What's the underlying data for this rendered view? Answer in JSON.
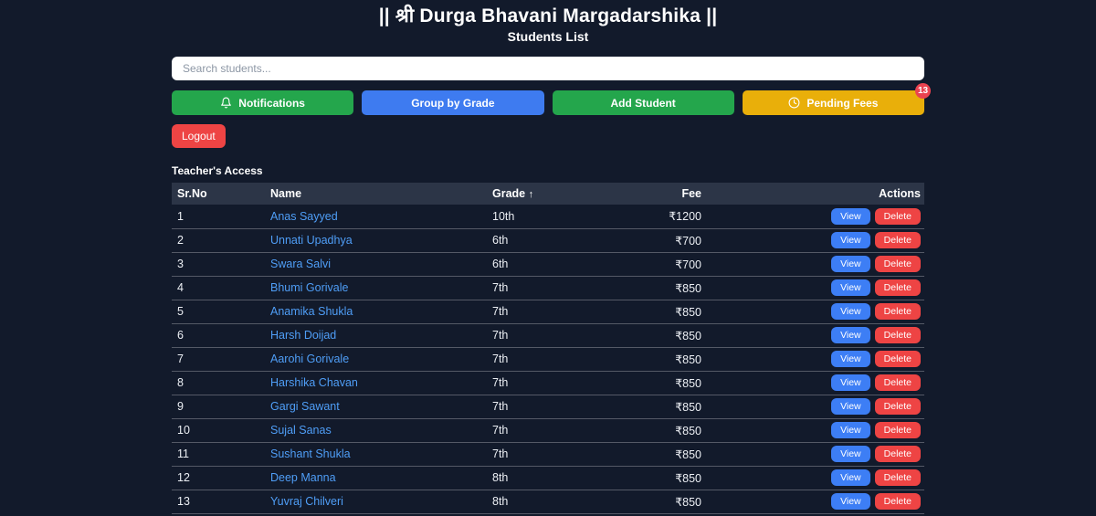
{
  "header": {
    "title": "|| श्री Durga Bhavani Margadarshika ||",
    "subtitle": "Students List"
  },
  "search": {
    "placeholder": "Search students..."
  },
  "toolbar": {
    "notifications_label": "Notifications",
    "group_by_grade_label": "Group by Grade",
    "add_student_label": "Add Student",
    "pending_fees_label": "Pending Fees",
    "pending_fees_badge": "13",
    "logout_label": "Logout"
  },
  "access_label": "Teacher's Access",
  "table": {
    "columns": [
      "Sr.No",
      "Name",
      "Grade",
      "Fee",
      "Actions"
    ],
    "sort_indicator": "↑",
    "view_label": "View",
    "delete_label": "Delete",
    "rows": [
      {
        "sr": "1",
        "name": "Anas Sayyed",
        "grade": "10th",
        "fee": "₹1200"
      },
      {
        "sr": "2",
        "name": "Unnati Upadhya",
        "grade": "6th",
        "fee": "₹700"
      },
      {
        "sr": "3",
        "name": "Swara Salvi",
        "grade": "6th",
        "fee": "₹700"
      },
      {
        "sr": "4",
        "name": "Bhumi Gorivale",
        "grade": "7th",
        "fee": "₹850"
      },
      {
        "sr": "5",
        "name": "Anamika Shukla",
        "grade": "7th",
        "fee": "₹850"
      },
      {
        "sr": "6",
        "name": "Harsh Doijad",
        "grade": "7th",
        "fee": "₹850"
      },
      {
        "sr": "7",
        "name": "Aarohi Gorivale",
        "grade": "7th",
        "fee": "₹850"
      },
      {
        "sr": "8",
        "name": "Harshika Chavan",
        "grade": "7th",
        "fee": "₹850"
      },
      {
        "sr": "9",
        "name": "Gargi Sawant",
        "grade": "7th",
        "fee": "₹850"
      },
      {
        "sr": "10",
        "name": "Sujal Sanas",
        "grade": "7th",
        "fee": "₹850"
      },
      {
        "sr": "11",
        "name": "Sushant Shukla",
        "grade": "7th",
        "fee": "₹850"
      },
      {
        "sr": "12",
        "name": "Deep Manna",
        "grade": "8th",
        "fee": "₹850"
      },
      {
        "sr": "13",
        "name": "Yuvraj Chilveri",
        "grade": "8th",
        "fee": "₹850"
      }
    ]
  },
  "colors": {
    "background": "#121a2b",
    "table_header": "#2c3547",
    "green_button": "#24a64c",
    "blue_button": "#3e7bf0",
    "gold_button": "#e9af0a",
    "red_button": "#ee4444",
    "name_link": "#4f9ef7",
    "badge": "#ea4350"
  }
}
